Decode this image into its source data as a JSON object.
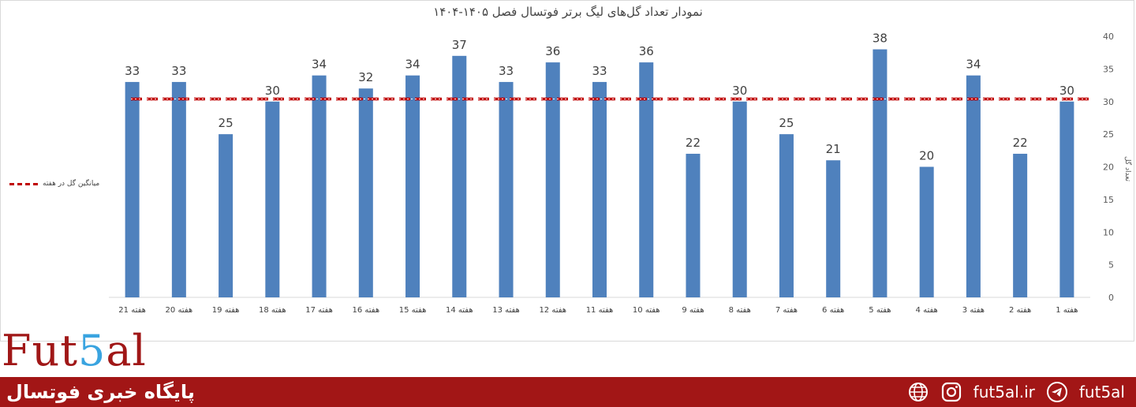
{
  "chart_data": {
    "type": "bar",
    "title": "نمودار تعداد گل‌های لیگ برتر فوتسال فصل ۱۴۰۵-۱۴۰۴",
    "ylabel": "تعداد گل",
    "ylim": [
      0,
      40
    ],
    "y_ticks": [
      0,
      5,
      10,
      15,
      20,
      25,
      30,
      35,
      40
    ],
    "y_axis_side": "right",
    "x_direction": "right-to-left",
    "categories": [
      "هفته 1",
      "هفته 2",
      "هفته 3",
      "هفته 4",
      "هفته 5",
      "هفته 6",
      "هفته 7",
      "هفته 8",
      "هفته 9",
      "هفته 10",
      "هفته 11",
      "هفته 12",
      "هفته 13",
      "هفته 14",
      "هفته 15",
      "هفته 16",
      "هفته 17",
      "هفته 18",
      "هفته 19",
      "هفته 20",
      "هفته 21"
    ],
    "values": [
      30,
      22,
      34,
      20,
      38,
      21,
      25,
      30,
      22,
      36,
      33,
      36,
      33,
      37,
      34,
      32,
      34,
      30,
      25,
      33,
      33
    ],
    "bar_color": "#4f81bd",
    "average_line": {
      "name": "میانگین گل در هفته",
      "value": 30.4,
      "color": "#c00000"
    },
    "legend_position": "left",
    "grid": false
  },
  "branding": {
    "logo_prefix": "Fut",
    "logo_five": "5",
    "logo_suffix": "al",
    "footer_title": "پایگاه خبری فوتسال",
    "website": "fut5al.ir",
    "telegram_handle": "fut5al",
    "colors": {
      "footer_bg": "#a21616",
      "logo_red": "#a01717",
      "logo_blue": "#3aa4e0"
    },
    "icons": [
      "globe-icon",
      "instagram-icon",
      "telegram-icon"
    ]
  }
}
